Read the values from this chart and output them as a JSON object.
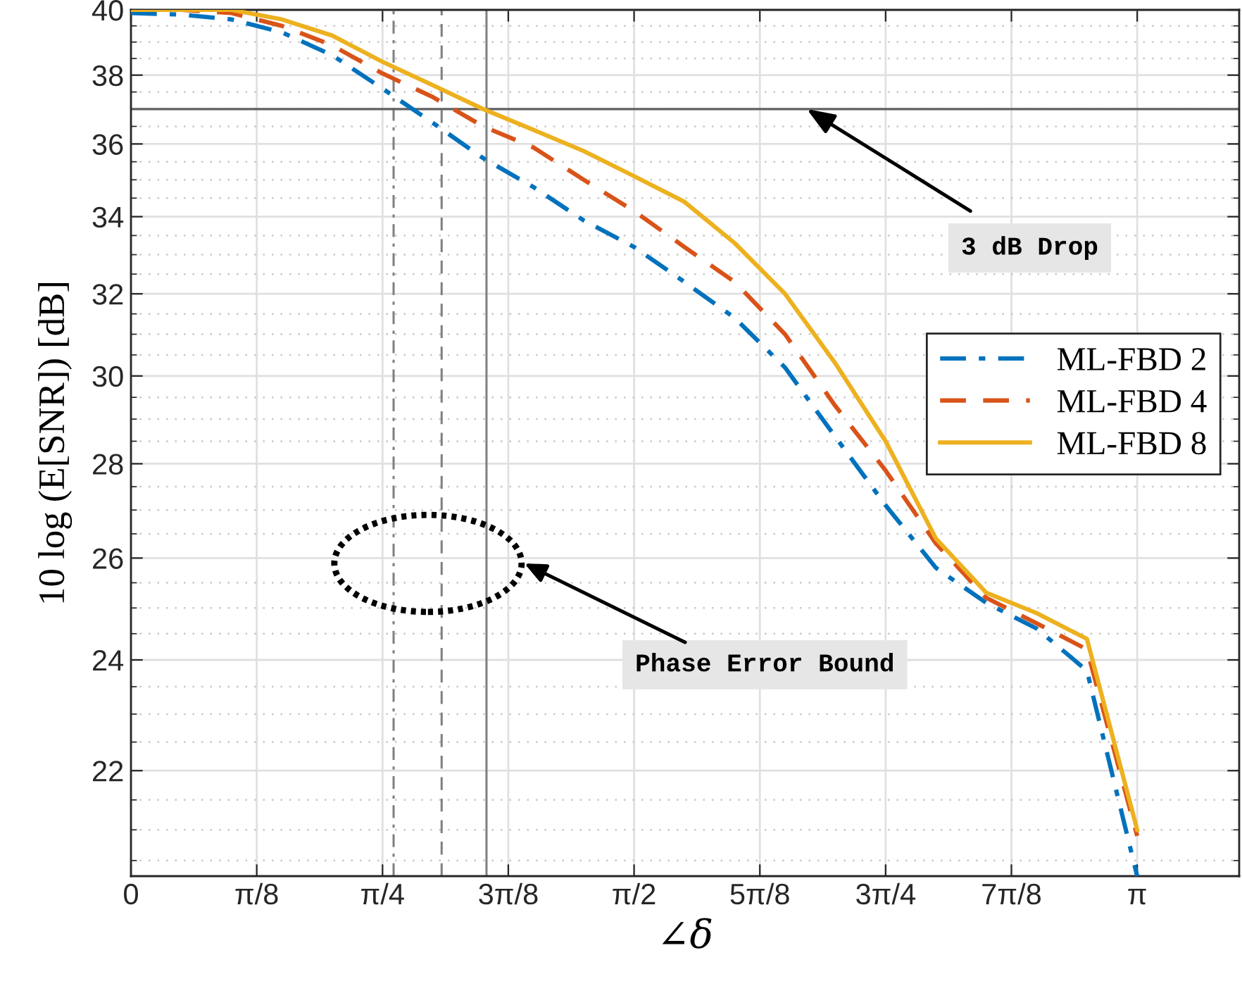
{
  "chart_data": {
    "type": "line",
    "xlabel": "∠δ",
    "ylabel": "10 log (E[SNR]) [dB]",
    "x": [
      0,
      0.1571,
      0.3142,
      0.4712,
      0.6283,
      0.7854,
      0.9425,
      1.0996,
      1.2566,
      1.4137,
      1.5708,
      1.7279,
      1.885,
      2.042,
      2.1991,
      2.3562,
      2.5133,
      2.6704,
      2.8274,
      2.9845,
      3.1416
    ],
    "series": [
      {
        "name": "ML-FBD 2",
        "color": "#0072bd",
        "line_style": "dashdot",
        "values": [
          39.9,
          39.85,
          39.7,
          39.3,
          38.6,
          37.6,
          36.6,
          35.6,
          34.8,
          33.9,
          33.2,
          32.3,
          31.4,
          30.2,
          28.6,
          27.1,
          25.8,
          25.1,
          24.6,
          23.8,
          20.25
        ]
      },
      {
        "name": "ML-FBD 4",
        "color": "#d95319",
        "line_style": "dashed",
        "values": [
          40.0,
          40.0,
          39.9,
          39.5,
          38.9,
          38.05,
          37.35,
          36.5,
          35.9,
          35.0,
          34.15,
          33.2,
          32.3,
          31.0,
          29.3,
          27.85,
          26.3,
          25.2,
          24.7,
          24.2,
          20.9
        ]
      },
      {
        "name": "ML-FBD 8",
        "color": "#edb120",
        "line_style": "solid",
        "values": [
          40.0,
          40.0,
          40.0,
          39.7,
          39.2,
          38.4,
          37.7,
          37.0,
          36.4,
          35.8,
          35.1,
          34.4,
          33.3,
          32.0,
          30.3,
          28.5,
          26.4,
          25.3,
          24.9,
          24.4,
          21.0
        ]
      }
    ],
    "log": "y",
    "xlim": [
      0,
      3.46
    ],
    "ylim": [
      20.25,
      40
    ],
    "xticks": [
      0,
      {
        "value": 0.3927,
        "label": "π/8"
      },
      {
        "value": 0.7854,
        "label": "π/4"
      },
      {
        "value": 1.1781,
        "label": "3π/8"
      },
      {
        "value": 1.5708,
        "label": "π/2"
      },
      {
        "value": 1.9635,
        "label": "5π/8"
      },
      {
        "value": 2.3562,
        "label": "3π/4"
      },
      {
        "value": 2.7489,
        "label": "7π/8"
      },
      {
        "value": 3.1416,
        "label": "π"
      }
    ],
    "yticks": [
      22,
      24,
      26,
      28,
      30,
      32,
      34,
      36,
      38,
      40
    ],
    "ref_lines": [
      {
        "axis": "x",
        "value": 0.82,
        "color": "#808080",
        "line_style": "dashdot"
      },
      {
        "axis": "x",
        "value": 0.97,
        "color": "#808080",
        "line_style": "dashed"
      },
      {
        "axis": "x",
        "value": 1.11,
        "color": "#808080",
        "line_style": "solid"
      },
      {
        "axis": "y",
        "value": 37,
        "color": "#606060",
        "line_style": "solid"
      }
    ],
    "annotations": [
      {
        "text": "3 dB Drop",
        "x": 2.11,
        "y": 37
      },
      "Phase Error Bound"
    ],
    "grid": true,
    "legend": "right",
    "marker": "none"
  }
}
